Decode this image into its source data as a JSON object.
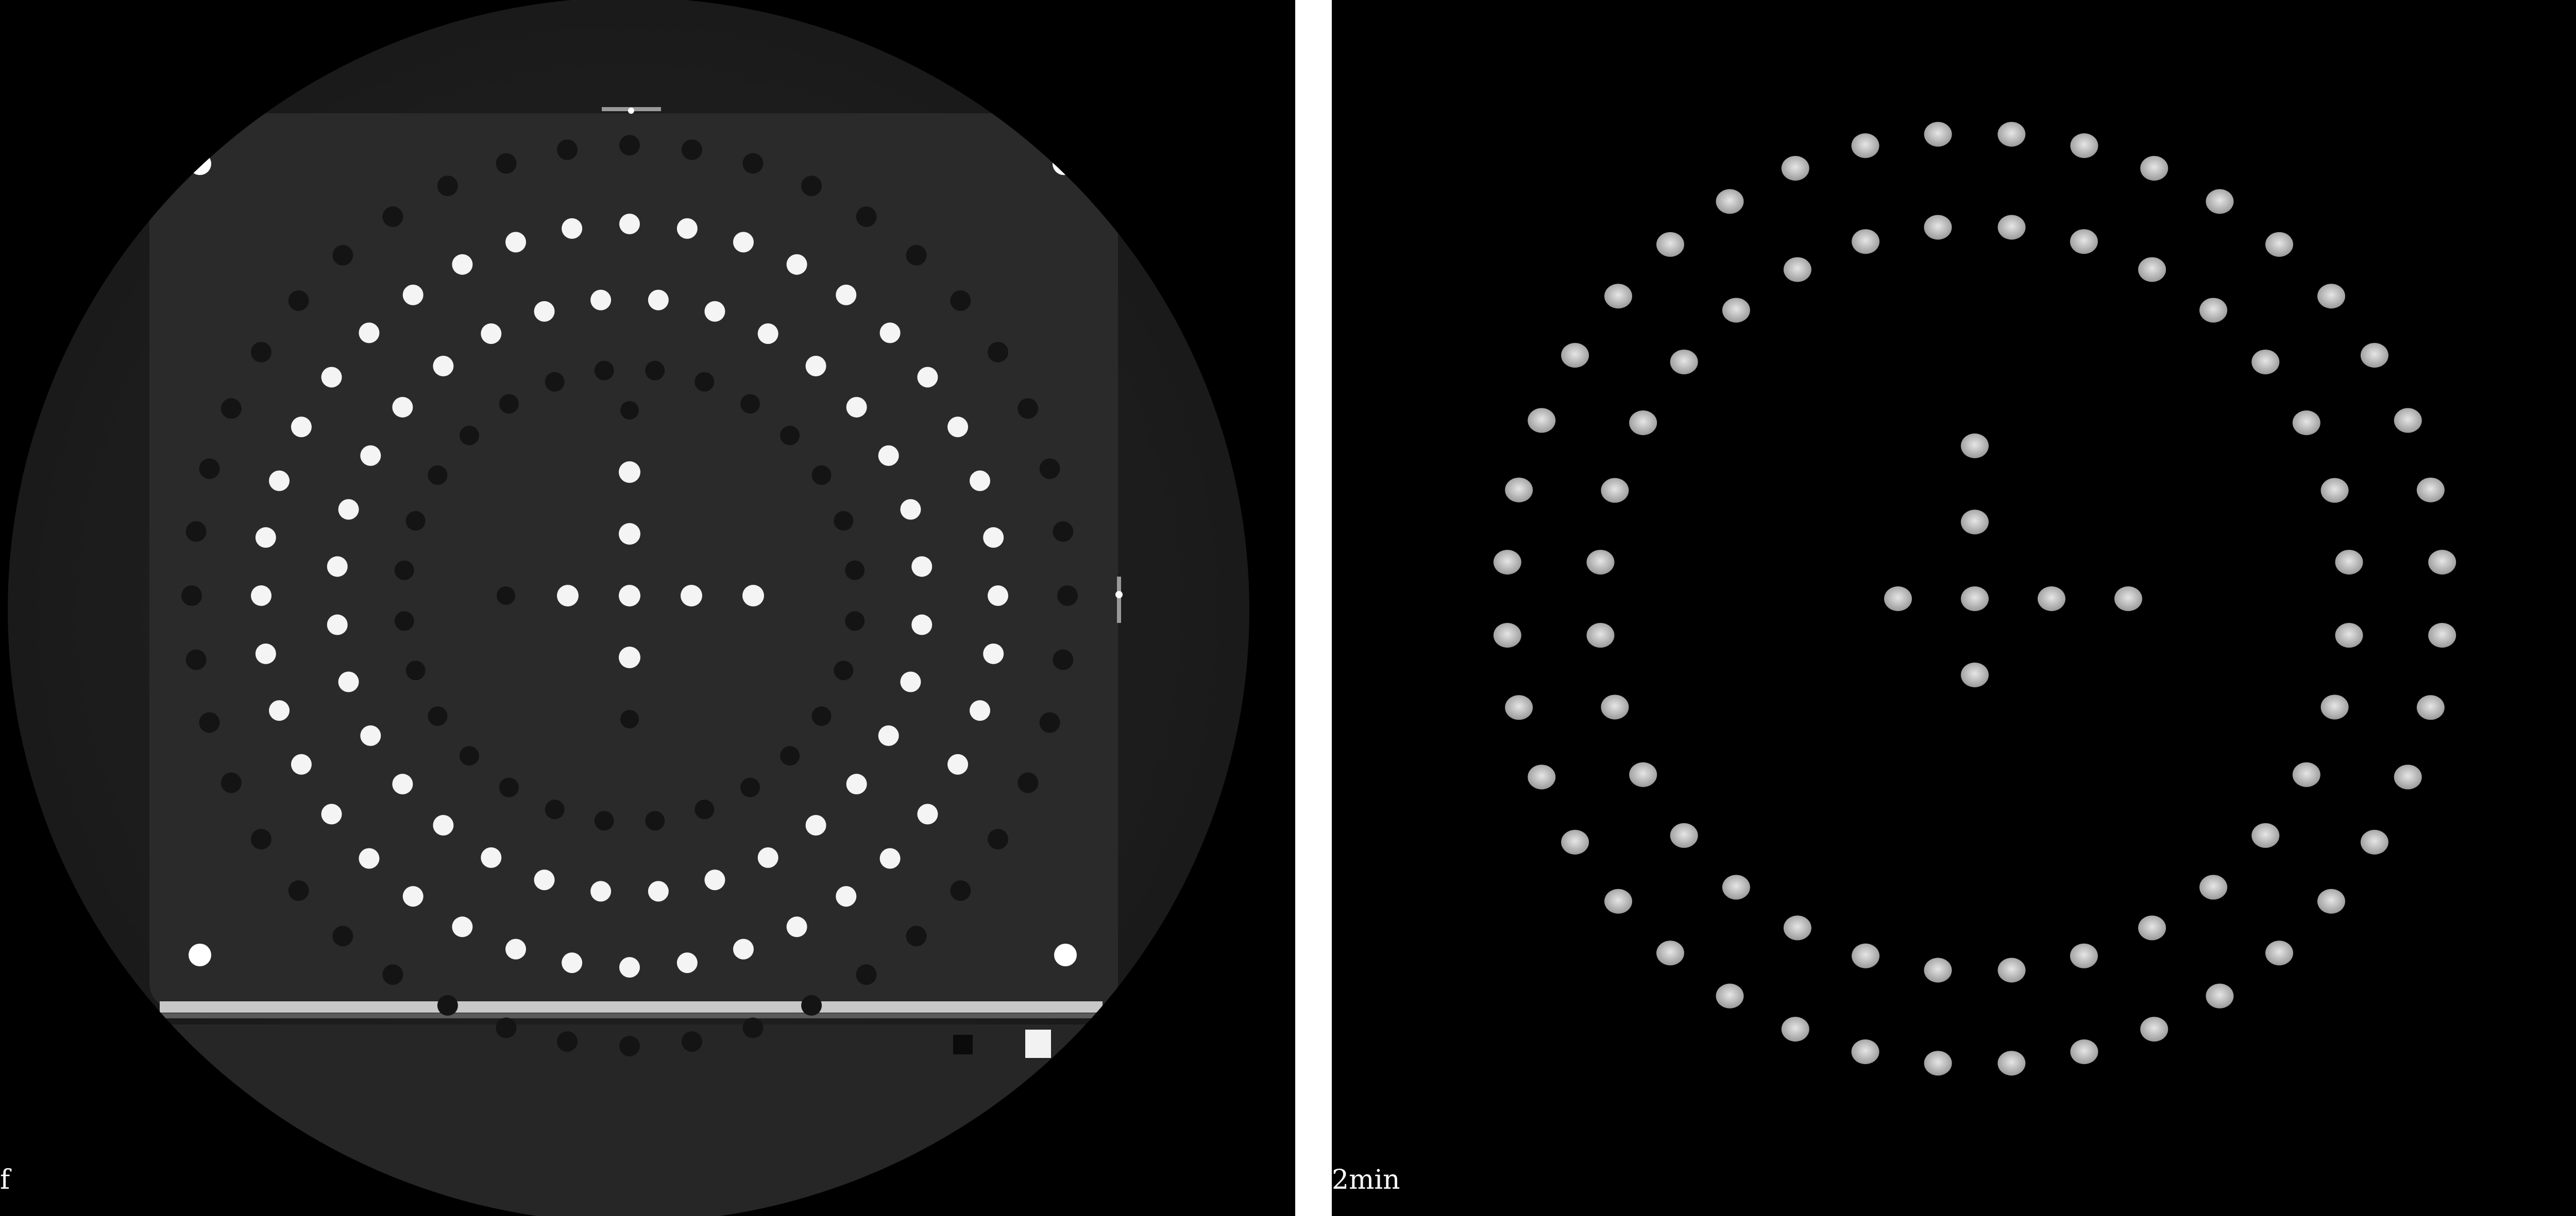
{
  "panels": {
    "left": {
      "caption": "f",
      "subject": "ct-scan-phantom-with-bright-and-dark-holes",
      "colors": {
        "background": "#000000",
        "disc": "#222222",
        "plate": "#2a2a2a",
        "bright_marker": "#f4f4f4",
        "dark_hole": "#141414"
      }
    },
    "right": {
      "caption": "2min",
      "subject": "reconstructed-marker-points",
      "colors": {
        "background": "#000000",
        "marker": "#cfcfcf"
      }
    }
  }
}
